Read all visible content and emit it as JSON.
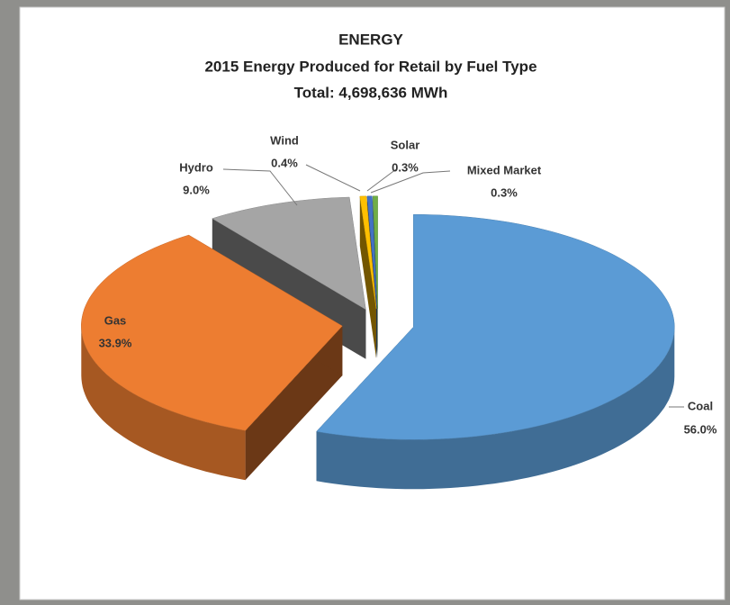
{
  "chart_data": {
    "type": "pie3d",
    "title": "ENERGY",
    "subtitle": "2015 Energy Produced for Retail by Fuel Type",
    "annotation": "Total: 4,698,636 MWh",
    "categories": [
      "Coal",
      "Gas",
      "Hydro",
      "Wind",
      "Solar",
      "Mixed Market"
    ],
    "values": [
      56.0,
      33.9,
      9.0,
      0.4,
      0.3,
      0.3
    ],
    "value_labels": [
      "56.0%",
      "33.9%",
      "9.0%",
      "0.4%",
      "0.3%",
      "0.3%"
    ],
    "colors": [
      "#5b9bd5",
      "#ed7d31",
      "#a5a5a5",
      "#ffc000",
      "#4472c4",
      "#70ad47"
    ]
  }
}
